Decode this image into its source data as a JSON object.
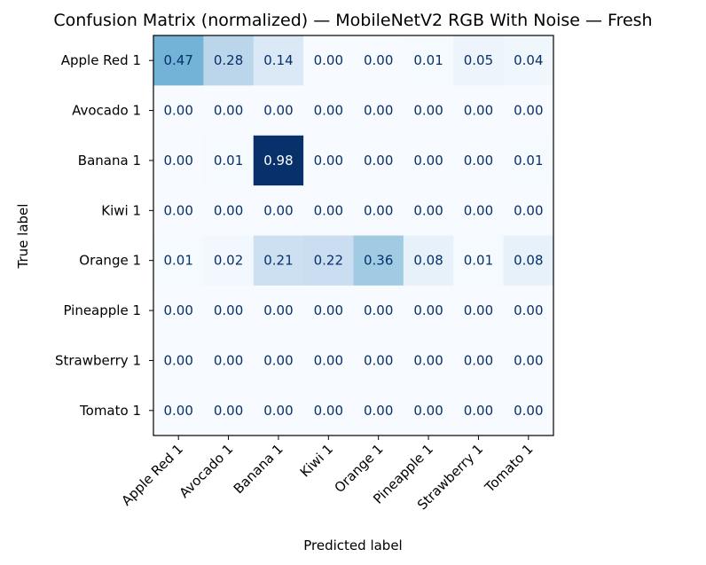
{
  "chart_data": {
    "type": "heatmap",
    "title": "Confusion Matrix (normalized) — MobileNetV2 RGB With Noise — Fresh",
    "xlabel": "Predicted label",
    "ylabel": "True label",
    "x_categories": [
      "Apple Red 1",
      "Avocado 1",
      "Banana 1",
      "Kiwi 1",
      "Orange 1",
      "Pineapple 1",
      "Strawberry 1",
      "Tomato 1"
    ],
    "y_categories": [
      "Apple Red 1",
      "Avocado 1",
      "Banana 1",
      "Kiwi 1",
      "Orange 1",
      "Pineapple 1",
      "Strawberry 1",
      "Tomato 1"
    ],
    "values": [
      [
        0.47,
        0.28,
        0.14,
        0.0,
        0.0,
        0.01,
        0.05,
        0.04
      ],
      [
        0.0,
        0.0,
        0.0,
        0.0,
        0.0,
        0.0,
        0.0,
        0.0
      ],
      [
        0.0,
        0.01,
        0.98,
        0.0,
        0.0,
        0.0,
        0.0,
        0.01
      ],
      [
        0.0,
        0.0,
        0.0,
        0.0,
        0.0,
        0.0,
        0.0,
        0.0
      ],
      [
        0.01,
        0.02,
        0.21,
        0.22,
        0.36,
        0.08,
        0.01,
        0.08
      ],
      [
        0.0,
        0.0,
        0.0,
        0.0,
        0.0,
        0.0,
        0.0,
        0.0
      ],
      [
        0.0,
        0.0,
        0.0,
        0.0,
        0.0,
        0.0,
        0.0,
        0.0
      ],
      [
        0.0,
        0.0,
        0.0,
        0.0,
        0.0,
        0.0,
        0.0,
        0.0
      ]
    ],
    "colormap": "Blues",
    "value_range": [
      0,
      0.98
    ],
    "grid": false
  }
}
